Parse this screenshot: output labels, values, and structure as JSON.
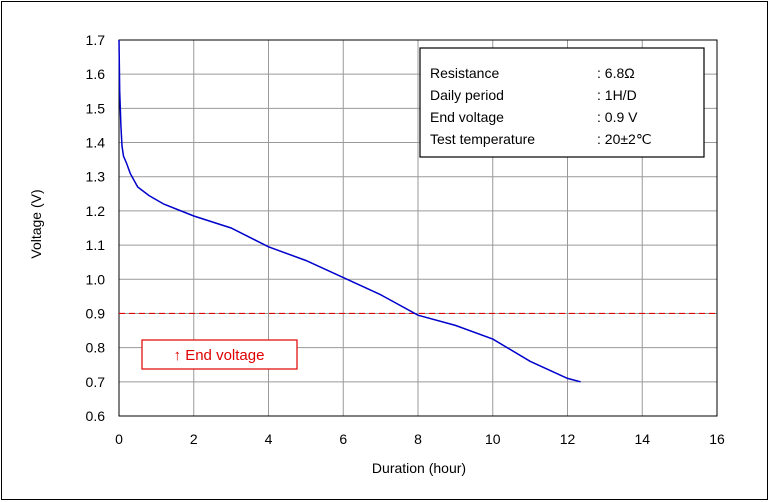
{
  "chart_data": {
    "type": "line",
    "xlabel": "Duration (hour)",
    "ylabel": "Voltage (V)",
    "xlim": [
      0,
      16
    ],
    "ylim": [
      0.6,
      1.7
    ],
    "xticks": [
      "0",
      "2",
      "4",
      "6",
      "8",
      "10",
      "12",
      "14",
      "16"
    ],
    "yticks": [
      "0.6",
      "0.7",
      "0.8",
      "0.9",
      "1.0",
      "1.1",
      "1.2",
      "1.3",
      "1.4",
      "1.5",
      "1.6",
      "1.7"
    ],
    "grid": true,
    "series": [
      {
        "color": "#0000cc",
        "x": [
          0.0,
          0.02,
          0.05,
          0.08,
          0.12,
          0.2,
          0.3,
          0.5,
          0.8,
          1.2,
          2.0,
          3.0,
          4.0,
          5.0,
          6.0,
          7.0,
          8.0,
          9.0,
          10.0,
          11.0,
          12.0,
          12.35
        ],
        "y": [
          1.7,
          1.55,
          1.45,
          1.39,
          1.36,
          1.34,
          1.31,
          1.27,
          1.245,
          1.22,
          1.185,
          1.15,
          1.095,
          1.055,
          1.005,
          0.955,
          0.895,
          0.865,
          0.825,
          0.76,
          0.71,
          0.7
        ]
      }
    ],
    "reference_line": {
      "y": 0.9,
      "color": "#e00000",
      "style": "dashed"
    },
    "annotation": {
      "text": "↑ End voltage",
      "color": "#e00000"
    },
    "info_box": {
      "rows": [
        {
          "label": "Resistance",
          "value": ": 6.8Ω"
        },
        {
          "label": "Daily period",
          "value": ": 1H/D"
        },
        {
          "label": "End voltage",
          "value": ": 0.9 V"
        },
        {
          "label": "Test temperature",
          "value": ": 20±2℃"
        }
      ]
    }
  }
}
